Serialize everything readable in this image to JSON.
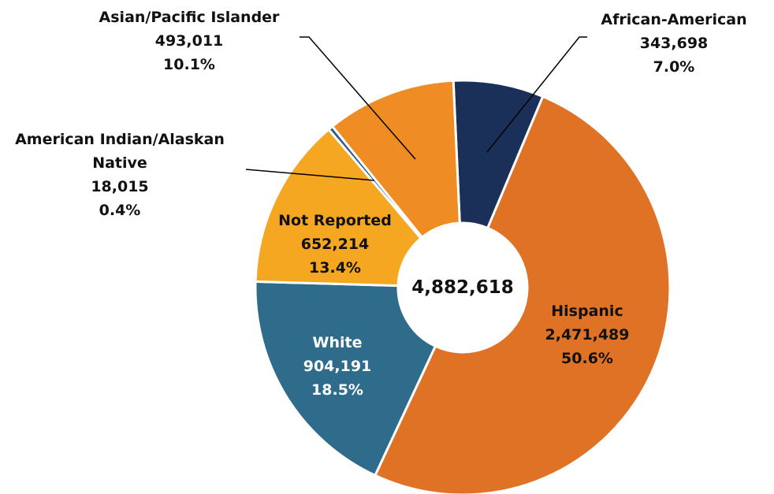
{
  "chart_data": {
    "type": "donut",
    "categories": [
      "African-American",
      "Hispanic",
      "White",
      "Not Reported",
      "American Indian/Alaskan Native",
      "Asian/Pacific Islander"
    ],
    "values": [
      343698,
      2471489,
      904191,
      652214,
      18015,
      493011
    ],
    "value_labels": [
      "343,698",
      "2,471,489",
      "904,191",
      "652,214",
      "18,015",
      "493,011"
    ],
    "percents": [
      7.0,
      50.6,
      18.5,
      13.4,
      0.4,
      10.1
    ],
    "percent_labels": [
      "7.0%",
      "50.6%",
      "18.5%",
      "13.4%",
      "0.4%",
      "10.1%"
    ],
    "colors": [
      "#1b3059",
      "#e07226",
      "#2f6c8b",
      "#f5a722",
      "#2a5d8c",
      "#ef8d24"
    ],
    "total": {
      "value": 4882618,
      "label": "4,882,618"
    }
  }
}
